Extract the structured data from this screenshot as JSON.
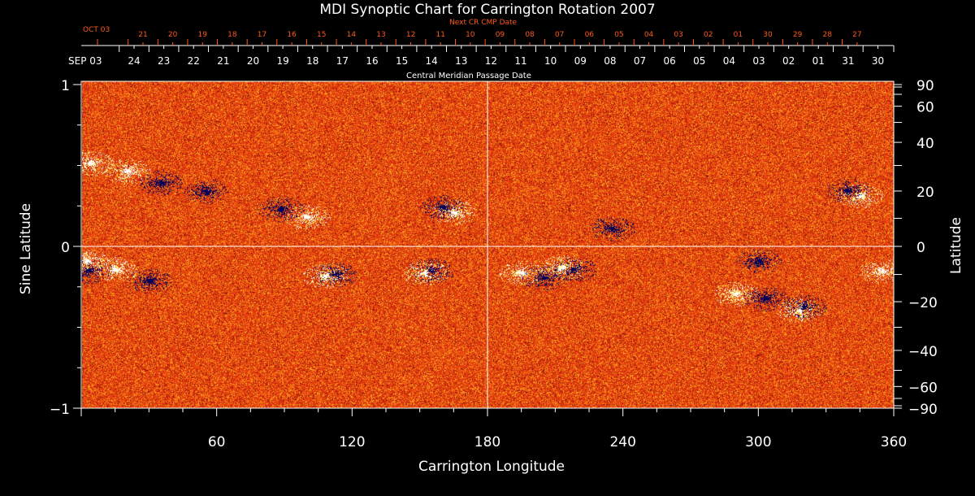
{
  "chart_data": {
    "type": "heatmap",
    "title": "MDI Synoptic Chart for Carrington Rotation 2007",
    "xlabel": "Carrington Longitude",
    "ylabel": "Sine Latitude",
    "y2label": "Latitude",
    "xlim": [
      0,
      360
    ],
    "ylim": [
      -1,
      1
    ],
    "xticks": [
      60,
      120,
      180,
      240,
      300,
      360
    ],
    "yticks": [
      {
        "v": 1,
        "label": "1"
      },
      {
        "v": 0,
        "label": "0"
      },
      {
        "v": -1,
        "label": "−1"
      }
    ],
    "y2ticks": [
      90,
      60,
      40,
      20,
      0,
      -20,
      -40,
      -60,
      -90
    ],
    "y2tick_labels": [
      "90",
      "60",
      "40",
      "20",
      "0",
      "−20",
      "−40",
      "−60",
      "−90"
    ],
    "top_axis": {
      "label": "Central Meridian Passage Date",
      "start_label": "SEP 03",
      "dates": [
        "24",
        "23",
        "22",
        "21",
        "20",
        "19",
        "18",
        "17",
        "16",
        "15",
        "14",
        "13",
        "12",
        "11",
        "10",
        "09",
        "08",
        "07",
        "06",
        "05",
        "04",
        "03",
        "02",
        "01",
        "31",
        "30"
      ]
    },
    "next_axis": {
      "label": "Next CR CMP Date",
      "start_label": "OCT 03",
      "dates": [
        "21",
        "20",
        "19",
        "18",
        "17",
        "16",
        "15",
        "14",
        "13",
        "12",
        "11",
        "10",
        "09",
        "08",
        "07",
        "06",
        "05",
        "04",
        "03",
        "02",
        "01",
        "30",
        "29",
        "28",
        "27"
      ]
    },
    "colors": {
      "background_field": "#f04010",
      "positive": "#ffffff",
      "negative": "#000060",
      "axis": "#ffffff",
      "next_axis": "#ff5a1a"
    },
    "grid": "center crosshair at longitude 180 and latitude 0"
  }
}
